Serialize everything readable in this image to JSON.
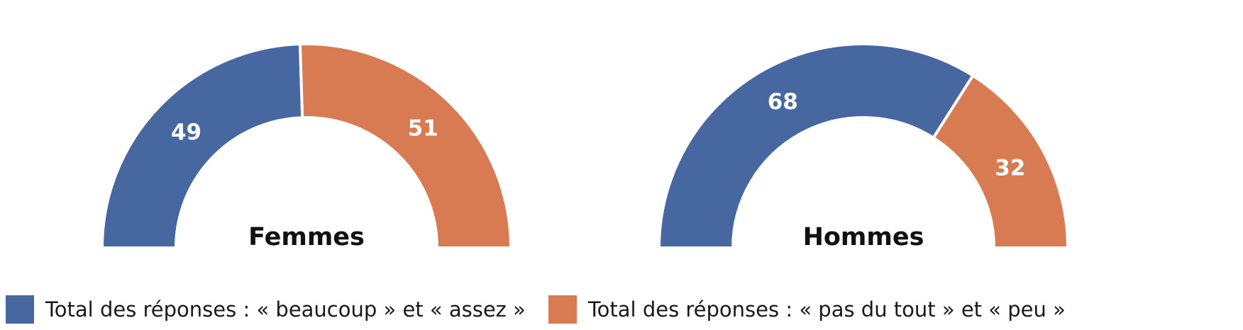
{
  "chart_data": [
    {
      "type": "pie",
      "subtype": "semicircle-donut",
      "title": "Femmes",
      "categories": [
        "Total des réponses : « beaucoup » et « assez »",
        "Total des réponses : « pas du tout » et « peu »"
      ],
      "values": [
        49,
        51
      ],
      "value_labels": [
        "49",
        "51"
      ]
    },
    {
      "type": "pie",
      "subtype": "semicircle-donut",
      "title": "Hommes",
      "categories": [
        "Total des réponses : « beaucoup » et « assez »",
        "Total des réponses : « pas du tout » et « peu »"
      ],
      "values": [
        68,
        32
      ],
      "value_labels": [
        "68",
        "32"
      ]
    }
  ],
  "legend": {
    "placement": "bottom-left",
    "items": [
      {
        "label": "Total des réponses : « beaucoup » et « assez »",
        "color": "#46679f"
      },
      {
        "label": "Total des réponses : « pas du tout » et « peu »",
        "color": "#d87a52"
      }
    ]
  },
  "colors": [
    "#46679f",
    "#d87a52"
  ]
}
